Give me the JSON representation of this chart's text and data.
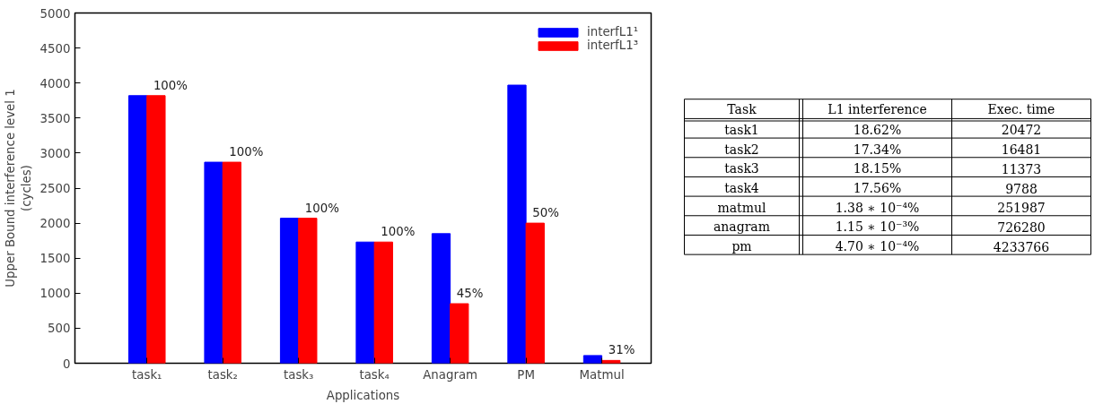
{
  "chart_data": [
    {
      "type": "bar",
      "xlabel": "Applications",
      "ylabel": "Upper Bound interference level 1\n(cycles)",
      "categories": [
        "task₁",
        "task₂",
        "task₃",
        "task₄",
        "Anagram",
        "PM",
        "Matmul"
      ],
      "series": [
        {
          "name": "interfL1¹",
          "color": "#0000ff",
          "values": [
            3820,
            2870,
            2070,
            1730,
            1850,
            3970,
            110
          ]
        },
        {
          "name": "interfL1³",
          "color": "#ff0000",
          "values": [
            3820,
            2870,
            2070,
            1730,
            850,
            2000,
            40
          ]
        }
      ],
      "annotations": [
        {
          "text": "100%",
          "x": "task₁",
          "y": 3820
        },
        {
          "text": "100%",
          "x": "task₂",
          "y": 2870
        },
        {
          "text": "100%",
          "x": "task₃",
          "y": 2070
        },
        {
          "text": "100%",
          "x": "task₄",
          "y": 1730
        },
        {
          "text": "45%",
          "x": "Anagram",
          "y": 850
        },
        {
          "text": "50%",
          "x": "PM",
          "y": 2000
        },
        {
          "text": "31%",
          "x": "Matmul",
          "y": 40
        }
      ],
      "ylim": [
        0,
        5000
      ],
      "yticks": [
        0,
        500,
        1000,
        1500,
        2000,
        2500,
        3000,
        3500,
        4000,
        4500,
        5000
      ],
      "grid": false,
      "legend": "top right"
    },
    {
      "type": "other",
      "categories": [
        "Task",
        "L1 interference",
        "Exec. time"
      ],
      "y_categories": [
        "task1",
        "task2",
        "task3",
        "task4",
        "matmul",
        "anagram",
        "pm"
      ],
      "cell_labels": [
        [
          "18.62%",
          "20472"
        ],
        [
          "17.34%",
          "16481"
        ],
        [
          "18.15%",
          "11373"
        ],
        [
          "17.56%",
          "9788"
        ],
        [
          "1.38 ∗ 10⁻⁴%",
          "251987"
        ],
        [
          "1.15 ∗ 10⁻³%",
          "726280"
        ],
        [
          "4.70 ∗ 10⁻⁴%",
          "4233766"
        ]
      ]
    }
  ]
}
